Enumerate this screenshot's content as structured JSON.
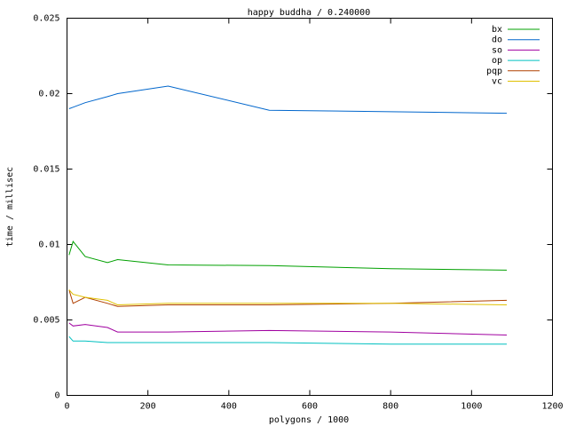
{
  "chart_data": {
    "type": "line",
    "title": "happy buddha / 0.240000",
    "x_label": "polygons / 1000",
    "y_label": "time / millisec",
    "x": [
      5,
      15,
      45,
      100,
      125,
      250,
      500,
      800,
      1087
    ],
    "series": [
      {
        "name": "bx",
        "color": "#00a000",
        "values": [
          0.0093,
          0.0102,
          0.0092,
          0.0088,
          0.009,
          0.00865,
          0.0086,
          0.0084,
          0.0083
        ]
      },
      {
        "name": "do",
        "color": "#0066cc",
        "values": [
          0.019,
          0.0191,
          0.0194,
          0.0198,
          0.02,
          0.0205,
          0.0189,
          0.0188,
          0.0187
        ]
      },
      {
        "name": "so",
        "color": "#a000a0",
        "values": [
          0.0048,
          0.0046,
          0.0047,
          0.0045,
          0.0042,
          0.0042,
          0.0043,
          0.0042,
          0.004
        ]
      },
      {
        "name": "op",
        "color": "#00c0c0",
        "values": [
          0.0039,
          0.0036,
          0.0036,
          0.0035,
          0.0035,
          0.0035,
          0.0035,
          0.0034,
          0.0034
        ]
      },
      {
        "name": "pqp",
        "color": "#b04000",
        "values": [
          0.007,
          0.0061,
          0.0065,
          0.0061,
          0.0059,
          0.006,
          0.006,
          0.0061,
          0.0063
        ]
      },
      {
        "name": "vc",
        "color": "#e0c000",
        "values": [
          0.007,
          0.0067,
          0.0065,
          0.0063,
          0.006,
          0.0061,
          0.0061,
          0.0061,
          0.006
        ]
      }
    ],
    "xlim": [
      0,
      1200
    ],
    "xticks": [
      0,
      200,
      400,
      600,
      800,
      1000,
      1200
    ],
    "ylim": [
      0,
      0.025
    ],
    "yticks": [
      0,
      0.005,
      0.01,
      0.015,
      0.02,
      0.025
    ],
    "legend": "top-right",
    "grid": false
  }
}
